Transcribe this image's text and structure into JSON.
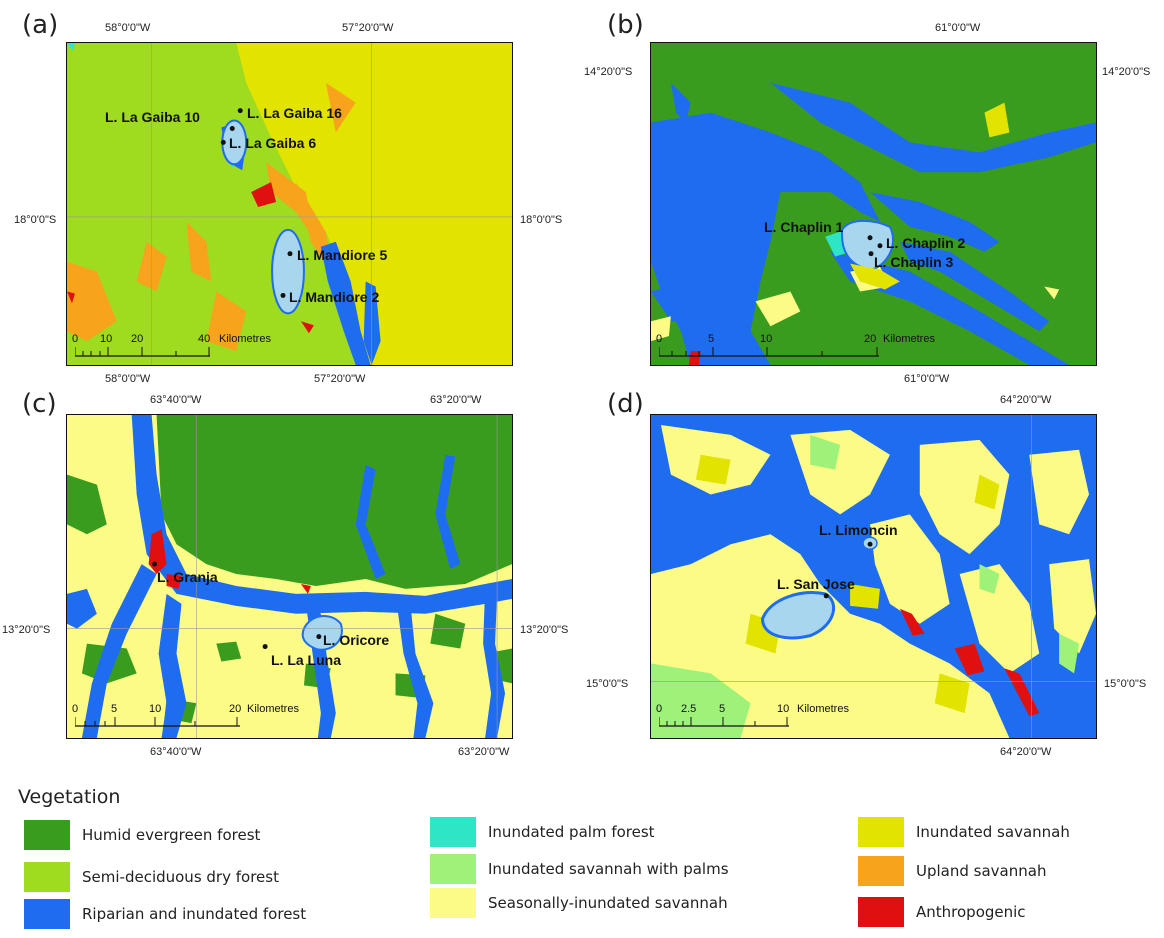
{
  "colors": {
    "humid_evergreen_forest": "#3a9c1f",
    "semi_deciduous_dry_forest": "#9fdb1e",
    "riparian_inundated_forest": "#1e6cf0",
    "inundated_palm_forest": "#2ee6c6",
    "inundated_savannah_palms": "#9ef27a",
    "seasonally_inundated_savannah": "#fbfb86",
    "inundated_savannah": "#e3e300",
    "upland_savannah": "#f7a41c",
    "anthropogenic": "#e01010",
    "lake": "#a8d6ee"
  },
  "panels": {
    "a": {
      "letter": "(a)",
      "top_left_lon": "58°0'0\"W",
      "top_right_lon": "57°20'0\"W",
      "bottom_left_lon": "58°0'0\"W",
      "bottom_right_lon": "57°20'0\"W",
      "left_lat": "18°0'0\"S",
      "right_lat": "18°0'0\"S",
      "lakes": [
        "L. La Gaiba 10",
        "L. La Gaiba 16",
        "L. La Gaiba 6",
        "L. Mandiore 5",
        "L. Mandiore 2"
      ],
      "scale": {
        "ticks": [
          "0",
          "10",
          "20",
          "40"
        ],
        "unit": "Kilometres"
      }
    },
    "b": {
      "letter": "(b)",
      "top_lon": "61°0'0\"W",
      "bottom_lon": "61°0'0\"W",
      "left_lat": "14°20'0\"S",
      "right_lat": "14°20'0\"S",
      "lakes": [
        "L. Chaplin 1",
        "L. Chaplin 2",
        "L. Chaplin 3"
      ],
      "scale": {
        "ticks": [
          "0",
          "5",
          "10",
          "20"
        ],
        "unit": "Kilometres"
      }
    },
    "c": {
      "letter": "(c)",
      "top_left_lon": "63°40'0\"W",
      "top_right_lon": "63°20'0\"W",
      "bottom_left_lon": "63°40'0\"W",
      "bottom_right_lon": "63°20'0\"W",
      "left_lat": "13°20'0\"S",
      "right_lat": "13°20'0\"S",
      "lakes": [
        "L. Granja",
        "L. Oricore",
        "L. La Luna"
      ],
      "scale": {
        "ticks": [
          "0",
          "5",
          "10",
          "20"
        ],
        "unit": "Kilometres"
      }
    },
    "d": {
      "letter": "(d)",
      "top_lon": "64°20'0\"W",
      "bottom_lon": "64°20'0\"W",
      "left_lat": "15°0'0\"S",
      "right_lat": "15°0'0\"S",
      "lakes": [
        "L. Limoncin",
        "L. San Jose"
      ],
      "scale": {
        "ticks": [
          "0",
          "2.5",
          "5",
          "10"
        ],
        "unit": "Kilometres"
      }
    }
  },
  "legend": {
    "title": "Vegetation",
    "items": [
      {
        "label": "Humid evergreen forest",
        "color": "#3a9c1f"
      },
      {
        "label": "Semi-deciduous dry forest",
        "color": "#9fdb1e"
      },
      {
        "label": "Riparian and inundated forest",
        "color": "#1e6cf0"
      },
      {
        "label": "Inundated palm forest",
        "color": "#2ee6c6"
      },
      {
        "label": "Inundated savannah with palms",
        "color": "#9ef27a"
      },
      {
        "label": "Seasonally-inundated savannah",
        "color": "#fbfb86"
      },
      {
        "label": "Inundated savannah",
        "color": "#e3e300"
      },
      {
        "label": "Upland savannah",
        "color": "#f7a41c"
      },
      {
        "label": "Anthropogenic",
        "color": "#e01010"
      }
    ]
  }
}
